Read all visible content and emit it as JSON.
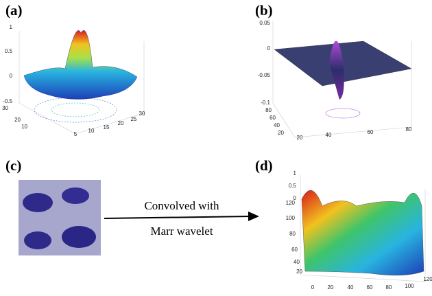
{
  "panels": [
    {
      "label": "(a)",
      "z_ticks": [
        "1",
        "0.5",
        "0",
        "-0.5"
      ],
      "y_ticks": [
        "30",
        "20",
        "10"
      ],
      "x_ticks": [
        "5",
        "10",
        "15",
        "20",
        "25",
        "30"
      ]
    },
    {
      "label": "(b)",
      "z_ticks": [
        "0.05",
        "0",
        "-0.05",
        "-0.1"
      ],
      "y_ticks": [
        "80",
        "60",
        "40",
        "20"
      ],
      "x_ticks": [
        "20",
        "40",
        "60",
        "80"
      ]
    },
    {
      "label": "(c)"
    },
    {
      "label": "(d)",
      "z_ticks": [
        "1",
        "0.5",
        "0"
      ],
      "y_ticks": [
        "120",
        "100",
        "80",
        "60",
        "40",
        "20"
      ],
      "x_ticks": [
        "0",
        "20",
        "40",
        "60",
        "80",
        "100",
        "120"
      ]
    }
  ],
  "arrow": {
    "line1": "Convolved with",
    "line2": "Marr wavelet"
  }
}
